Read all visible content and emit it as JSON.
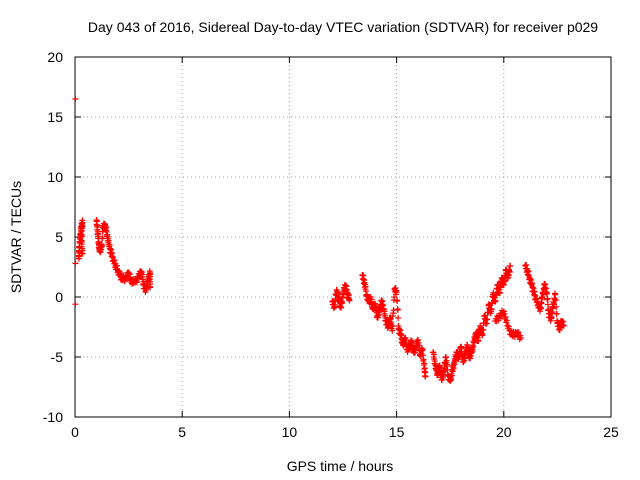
{
  "chart_data": {
    "type": "scatter",
    "title": "Day 043 of 2016, Sidereal Day-to-day VTEC variation (SDTVAR) for receiver p029",
    "xlabel": "GPS time / hours",
    "ylabel": "SDTVAR / TECUs",
    "xlim": [
      0,
      25
    ],
    "ylim": [
      -10,
      20
    ],
    "xticks": [
      0,
      5,
      10,
      15,
      20,
      25
    ],
    "yticks": [
      -10,
      -5,
      0,
      5,
      10,
      15,
      20
    ],
    "grid": true,
    "marker": "+",
    "series": [
      {
        "name": "SDTVAR",
        "color": "#ff0000",
        "segments": [
          [
            [
              0.02,
              16.5
            ],
            [
              0.02,
              2.8
            ],
            [
              0.02,
              -0.6
            ]
          ],
          [
            [
              0.18,
              3.2
            ],
            [
              0.2,
              4.2
            ],
            [
              0.25,
              5.2
            ],
            [
              0.3,
              5.8
            ],
            [
              0.35,
              6.2
            ],
            [
              0.3,
              4.6
            ],
            [
              0.35,
              3.6
            ]
          ],
          [
            [
              1.0,
              6.4
            ],
            [
              1.05,
              5.6
            ],
            [
              1.1,
              4.6
            ],
            [
              1.15,
              3.8
            ],
            [
              1.25,
              4.2
            ],
            [
              1.3,
              5.8
            ],
            [
              1.4,
              6.0
            ],
            [
              1.5,
              5.2
            ],
            [
              1.6,
              4.2
            ],
            [
              1.7,
              3.6
            ],
            [
              1.8,
              3.0
            ],
            [
              1.9,
              2.6
            ],
            [
              2.0,
              2.2
            ],
            [
              2.1,
              1.8
            ],
            [
              2.2,
              1.5
            ],
            [
              2.4,
              1.6
            ],
            [
              2.5,
              2.0
            ],
            [
              2.6,
              1.4
            ],
            [
              2.8,
              1.2
            ],
            [
              3.0,
              1.8
            ],
            [
              3.1,
              2.1
            ],
            [
              3.2,
              1.0
            ],
            [
              3.3,
              0.6
            ],
            [
              3.4,
              1.4
            ],
            [
              3.5,
              2.0
            ],
            [
              3.5,
              0.8
            ]
          ],
          [
            [
              12.0,
              -0.4
            ],
            [
              12.1,
              -0.8
            ],
            [
              12.2,
              0.6
            ],
            [
              12.3,
              -0.2
            ],
            [
              12.4,
              -0.9
            ],
            [
              12.5,
              0.2
            ],
            [
              12.6,
              1.0
            ],
            [
              12.7,
              0.4
            ],
            [
              12.8,
              -0.3
            ]
          ],
          [
            [
              13.4,
              1.8
            ],
            [
              13.5,
              1.2
            ],
            [
              13.6,
              0.2
            ],
            [
              13.7,
              -0.4
            ],
            [
              13.8,
              -0.2
            ],
            [
              13.9,
              -1.0
            ],
            [
              14.0,
              -0.6
            ],
            [
              14.1,
              -1.6
            ],
            [
              14.2,
              -1.2
            ],
            [
              14.3,
              -0.4
            ],
            [
              14.4,
              -1.0
            ],
            [
              14.5,
              -2.0
            ],
            [
              14.6,
              -2.4
            ],
            [
              14.7,
              -1.8
            ],
            [
              14.8,
              -2.8
            ],
            [
              14.9,
              0.6
            ],
            [
              15.0,
              0.4
            ],
            [
              15.1,
              -2.6
            ],
            [
              15.2,
              -3.2
            ],
            [
              15.3,
              -4.0
            ],
            [
              15.4,
              -3.4
            ],
            [
              15.5,
              -4.4
            ],
            [
              15.6,
              -4.0
            ],
            [
              15.7,
              -3.8
            ],
            [
              15.8,
              -4.6
            ],
            [
              15.9,
              -4.2
            ],
            [
              16.0,
              -3.6
            ],
            [
              16.1,
              -4.8
            ],
            [
              16.2,
              -4.4
            ],
            [
              16.3,
              -6.0
            ],
            [
              16.35,
              -6.6
            ]
          ],
          [
            [
              16.7,
              -4.6
            ],
            [
              16.8,
              -5.6
            ],
            [
              16.9,
              -6.4
            ],
            [
              17.0,
              -5.8
            ],
            [
              17.1,
              -6.9
            ],
            [
              17.2,
              -6.2
            ],
            [
              17.3,
              -5.0
            ],
            [
              17.4,
              -6.5
            ],
            [
              17.5,
              -7.0
            ],
            [
              17.6,
              -6.2
            ],
            [
              17.7,
              -5.4
            ],
            [
              17.8,
              -4.6
            ],
            [
              17.9,
              -5.0
            ],
            [
              18.0,
              -4.2
            ],
            [
              18.1,
              -5.4
            ],
            [
              18.2,
              -4.8
            ],
            [
              18.3,
              -4.0
            ],
            [
              18.4,
              -5.0
            ],
            [
              18.5,
              -4.6
            ],
            [
              18.6,
              -3.8
            ],
            [
              18.7,
              -3.0
            ],
            [
              18.8,
              -3.6
            ],
            [
              18.9,
              -2.4
            ],
            [
              19.0,
              -3.2
            ],
            [
              19.1,
              -1.6
            ],
            [
              19.2,
              -2.2
            ],
            [
              19.3,
              -0.6
            ],
            [
              19.4,
              -1.2
            ],
            [
              19.5,
              0.2
            ],
            [
              19.6,
              -0.4
            ],
            [
              19.7,
              1.0
            ],
            [
              19.8,
              0.4
            ],
            [
              19.9,
              1.6
            ],
            [
              20.0,
              1.0
            ],
            [
              20.1,
              2.2
            ],
            [
              20.2,
              1.6
            ],
            [
              20.3,
              2.6
            ]
          ],
          [
            [
              19.6,
              -2.0
            ],
            [
              19.8,
              -1.6
            ],
            [
              20.0,
              -1.2
            ],
            [
              20.2,
              -2.6
            ],
            [
              20.4,
              -3.2
            ],
            [
              20.6,
              -3.0
            ],
            [
              20.8,
              -3.4
            ]
          ],
          [
            [
              21.0,
              2.6
            ],
            [
              21.1,
              2.2
            ],
            [
              21.2,
              1.6
            ],
            [
              21.3,
              1.0
            ],
            [
              21.4,
              0.4
            ],
            [
              21.5,
              -0.2
            ],
            [
              21.6,
              -0.6
            ],
            [
              21.7,
              -1.0
            ],
            [
              21.8,
              0.0
            ],
            [
              21.9,
              1.0
            ],
            [
              22.0,
              0.4
            ],
            [
              22.1,
              -1.4
            ],
            [
              22.2,
              -1.8
            ],
            [
              22.3,
              -0.8
            ],
            [
              22.4,
              0.2
            ],
            [
              22.5,
              -2.2
            ],
            [
              22.6,
              -2.6
            ],
            [
              22.7,
              -2.0
            ],
            [
              22.8,
              -2.4
            ]
          ]
        ]
      }
    ]
  }
}
